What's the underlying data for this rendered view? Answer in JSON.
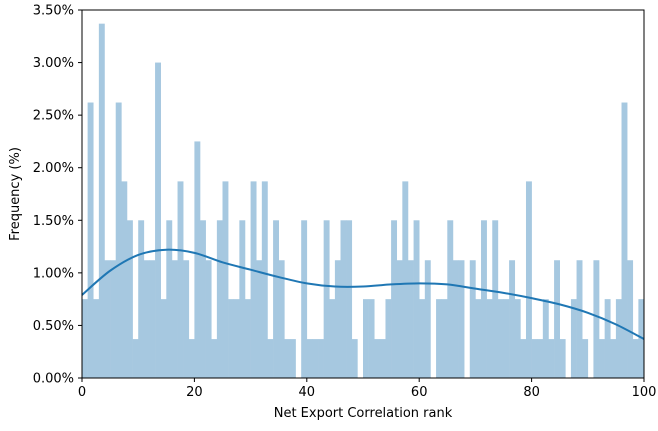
{
  "chart_data": {
    "type": "bar",
    "title": "",
    "xlabel": "Net Export Correlation rank",
    "ylabel": "Frequency (%)",
    "xlim": [
      0,
      100
    ],
    "ylim": [
      0,
      3.5
    ],
    "x_ticks": [
      0,
      20,
      40,
      60,
      80,
      100
    ],
    "y_ticks": [
      0,
      0.5,
      1.0,
      1.5,
      2.0,
      2.5,
      3.0,
      3.5
    ],
    "y_tick_format": "percent_2dp",
    "grid": false,
    "legend": "none",
    "bar_color": "#a6c8e0",
    "curve_color": "#1f77b4",
    "bins": {
      "start": 0,
      "width": 1,
      "values": [
        0.75,
        2.62,
        0.75,
        3.37,
        1.12,
        1.12,
        2.62,
        1.87,
        1.5,
        0.37,
        1.5,
        1.12,
        1.12,
        3.0,
        0.75,
        1.5,
        1.12,
        1.87,
        1.12,
        0.37,
        2.25,
        1.5,
        1.12,
        0.37,
        1.5,
        1.87,
        0.75,
        0.75,
        1.5,
        0.75,
        1.87,
        1.12,
        1.87,
        0.37,
        1.5,
        1.12,
        0.37,
        0.37,
        0.0,
        1.5,
        0.37,
        0.37,
        0.37,
        1.5,
        0.75,
        1.12,
        1.5,
        1.5,
        0.37,
        0.0,
        0.75,
        0.75,
        0.37,
        0.37,
        0.75,
        1.5,
        1.12,
        1.87,
        1.12,
        1.5,
        0.75,
        1.12,
        0.0,
        0.75,
        0.75,
        1.5,
        1.12,
        1.12,
        0.0,
        1.12,
        0.75,
        1.5,
        0.75,
        1.5,
        0.75,
        0.75,
        1.12,
        0.75,
        0.37,
        1.87,
        0.37,
        0.37,
        0.75,
        0.37,
        1.12,
        0.37,
        0.0,
        0.75,
        1.12,
        0.37,
        0.0,
        1.12,
        0.37,
        0.75,
        0.37,
        0.75,
        2.62,
        1.12,
        0.37,
        0.75
      ]
    },
    "density_curve": {
      "x": [
        0,
        5,
        10,
        15,
        20,
        25,
        30,
        35,
        40,
        45,
        50,
        55,
        60,
        65,
        70,
        75,
        80,
        85,
        90,
        95,
        100
      ],
      "y": [
        0.79,
        1.02,
        1.17,
        1.22,
        1.19,
        1.1,
        1.03,
        0.96,
        0.9,
        0.87,
        0.87,
        0.89,
        0.9,
        0.89,
        0.85,
        0.81,
        0.76,
        0.7,
        0.62,
        0.51,
        0.37
      ]
    }
  }
}
